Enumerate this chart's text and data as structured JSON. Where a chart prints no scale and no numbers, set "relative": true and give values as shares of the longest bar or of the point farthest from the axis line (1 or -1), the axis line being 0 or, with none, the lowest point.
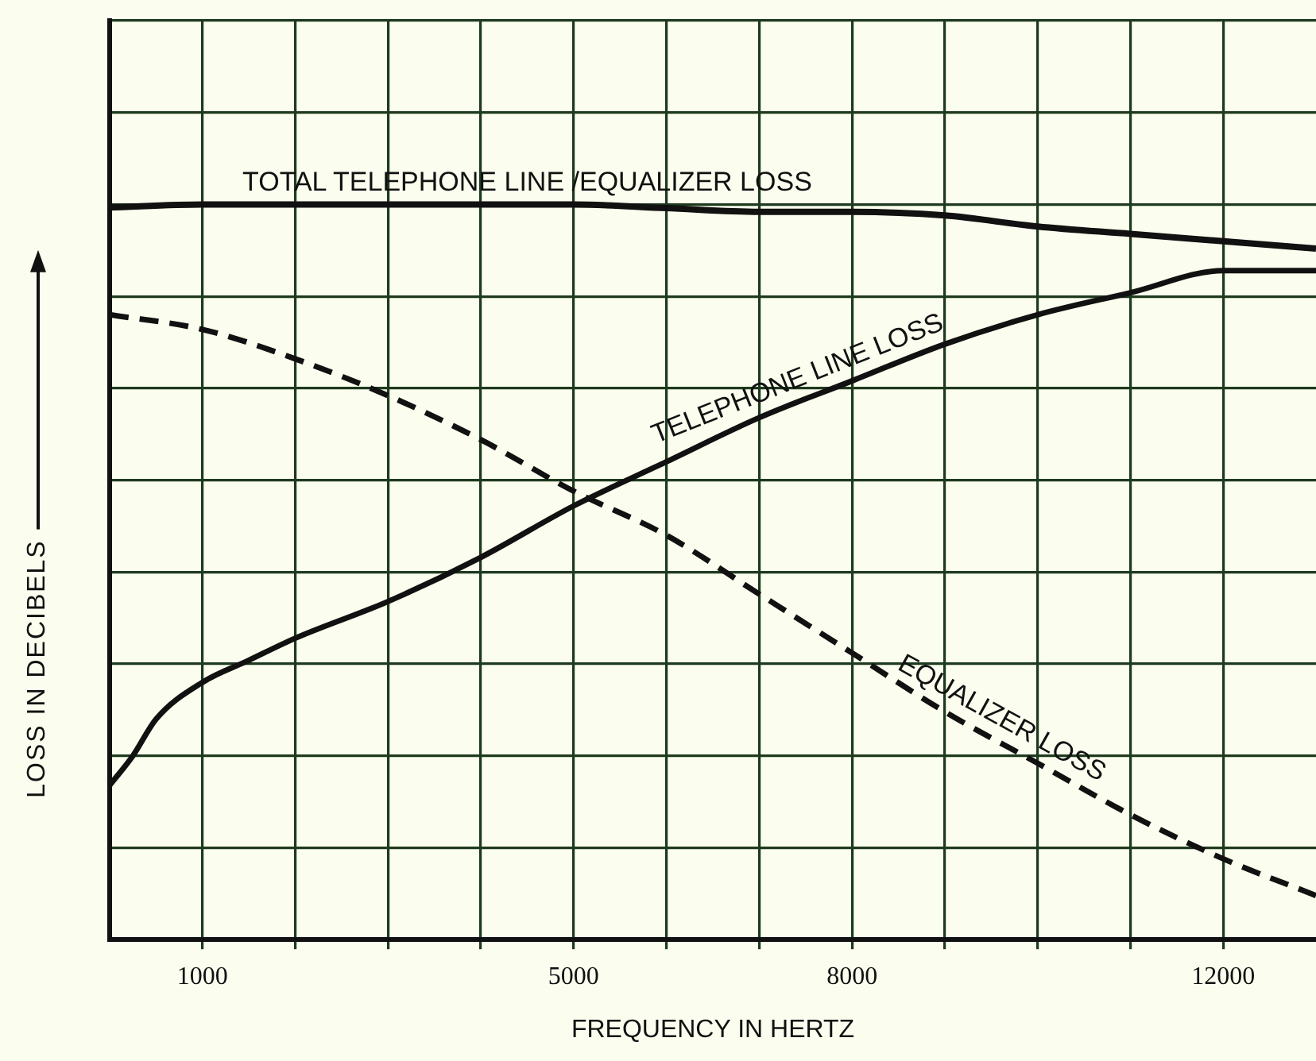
{
  "chart_data": {
    "type": "line",
    "relative": true,
    "xlabel": "FREQUENCY IN HERTZ",
    "ylabel": "LOSS IN DECIBELS",
    "xlim": [
      0,
      13000
    ],
    "xticks": [
      {
        "value": 1000,
        "label": "1000"
      },
      {
        "value": 2000,
        "label": null
      },
      {
        "value": 3000,
        "label": null
      },
      {
        "value": 4000,
        "label": null
      },
      {
        "value": 5000,
        "label": "5000"
      },
      {
        "value": 6000,
        "label": null
      },
      {
        "value": 7000,
        "label": null
      },
      {
        "value": 8000,
        "label": "8000"
      },
      {
        "value": 9000,
        "label": null
      },
      {
        "value": 10000,
        "label": null
      },
      {
        "value": 11000,
        "label": null
      },
      {
        "value": 12000,
        "label": "12000"
      }
    ],
    "grid": true,
    "legend": false,
    "marker": "none",
    "series": [
      {
        "name": "TOTAL TELEPHONE LINE /EQUALIZER LOSS",
        "color": "#111111",
        "line_style": "solid",
        "x": [
          0,
          1000,
          2000,
          3000,
          4000,
          5000,
          6000,
          7000,
          8000,
          9000,
          10000,
          11000,
          12000,
          13000
        ],
        "values": [
          0.996,
          1,
          1,
          1,
          1,
          1,
          0.995,
          0.99,
          0.99,
          0.985,
          0.97,
          0.96,
          0.95,
          0.94
        ]
      },
      {
        "name": "TELEPHONE LINE LOSS",
        "color": "#111111",
        "line_style": "solid",
        "x": [
          0,
          250,
          500,
          1000,
          1500,
          2000,
          3000,
          4000,
          5000,
          6000,
          7000,
          8000,
          9000,
          10000,
          11000,
          12000,
          13000
        ],
        "values": [
          0.21,
          0.25,
          0.3,
          0.35,
          0.38,
          0.41,
          0.46,
          0.52,
          0.59,
          0.65,
          0.71,
          0.76,
          0.81,
          0.85,
          0.88,
          0.91,
          0.91
        ]
      },
      {
        "name": "EQUALIZER LOSS",
        "color": "#111111",
        "line_style": "dashed",
        "x": [
          0,
          1000,
          2000,
          3000,
          4000,
          5000,
          6000,
          7000,
          8000,
          9000,
          10000,
          11000,
          12000,
          13000
        ],
        "values": [
          0.85,
          0.83,
          0.79,
          0.74,
          0.68,
          0.61,
          0.55,
          0.47,
          0.39,
          0.31,
          0.24,
          0.17,
          0.11,
          0.06
        ]
      }
    ]
  }
}
